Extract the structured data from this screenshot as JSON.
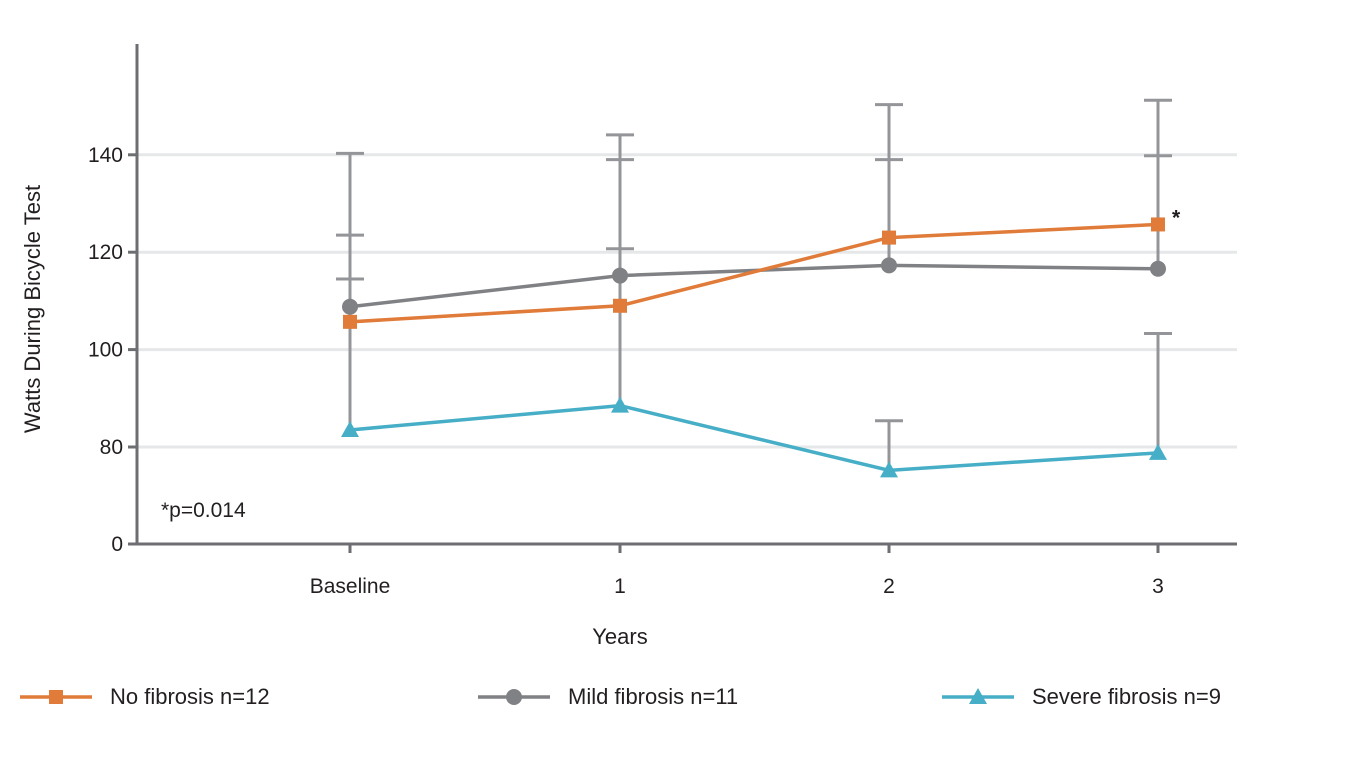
{
  "chart_data": {
    "type": "line",
    "xlabel": "Years",
    "ylabel": "Watts During Bicycle Test",
    "categories": [
      "Baseline",
      "1",
      "2",
      "3"
    ],
    "y_ticks": [
      {
        "value": 0,
        "label": "0"
      },
      {
        "value": 80,
        "label": "80"
      },
      {
        "value": 100,
        "label": "100"
      },
      {
        "value": 120,
        "label": "120"
      },
      {
        "value": 140,
        "label": "140"
      }
    ],
    "y_axis_break": true,
    "grid": true,
    "legend_position": "bottom",
    "note": "*p=0.014",
    "significance_marker": {
      "series": "No fibrosis n=12",
      "category": "3",
      "text": "*"
    },
    "series": [
      {
        "name": "No fibrosis n=12",
        "color": "#e07b39",
        "marker": "square",
        "values": [
          105.7,
          109,
          123,
          125.7
        ],
        "error_upper": [
          123.5,
          139,
          139,
          139.8
        ]
      },
      {
        "name": "Mild fibrosis n=11",
        "color": "#808184",
        "marker": "circle",
        "values": [
          108.8,
          115.2,
          117.3,
          116.6
        ],
        "error_upper": [
          140.3,
          144.1,
          150.3,
          151.2
        ],
        "error_lower": [
          114.5,
          120.7,
          null,
          null
        ]
      },
      {
        "name": "Severe fibrosis n=9",
        "color": "#46aec6",
        "marker": "triangle",
        "values": [
          83.5,
          88.5,
          75.2,
          78.8
        ],
        "error_upper": [
          null,
          null,
          85.4,
          103.3
        ]
      }
    ]
  }
}
